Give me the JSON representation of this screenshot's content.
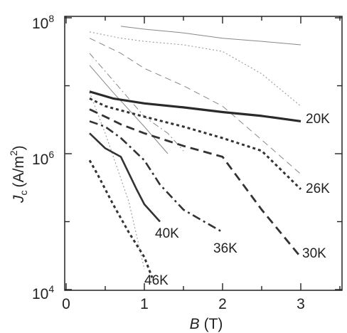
{
  "chart_data": {
    "type": "line",
    "xlabel": "B (T)",
    "xlabel_parts": [
      "B",
      "(T)"
    ],
    "ylabel_parts": [
      "J",
      "c",
      "(A/m",
      "2",
      ")"
    ],
    "xlim": [
      0,
      3.5
    ],
    "ylim": [
      10000,
      100000000
    ],
    "yscale": "log",
    "grid": false,
    "x_ticks": [
      0,
      1,
      2,
      3
    ],
    "x_tick_labels": [
      "0",
      "1",
      "2",
      "3"
    ],
    "y_ticks": [
      10000,
      1000000,
      100000000
    ],
    "y_tick_labels": [
      {
        "base": "10",
        "exp": "4"
      },
      {
        "base": "10",
        "exp": "6"
      },
      {
        "base": "10",
        "exp": "8"
      }
    ],
    "series": [
      {
        "name": "20K",
        "style": "thick-solid",
        "x": [
          0.3,
          0.6,
          1.0,
          1.5,
          2.0,
          2.5,
          3.0
        ],
        "y": [
          8200000,
          6500000,
          5500000,
          4800000,
          4100000,
          3600000,
          3000000
        ]
      },
      {
        "name": "26K",
        "style": "dotted",
        "x": [
          0.3,
          0.5,
          1.0,
          1.5,
          2.0,
          2.5,
          3.0
        ],
        "y": [
          6500000,
          5000000,
          3500000,
          2500000,
          1700000,
          1100000,
          300000
        ]
      },
      {
        "name": "30K",
        "style": "dashed",
        "x": [
          0.3,
          0.5,
          0.7,
          1.0,
          1.5,
          2.0,
          2.5,
          3.0
        ],
        "y": [
          4500000,
          3500000,
          2700000,
          2000000,
          1300000,
          900000,
          150000,
          30000
        ]
      },
      {
        "name": "36K",
        "style": "dash-dot",
        "x": [
          0.3,
          0.5,
          0.7,
          1.0,
          1.2,
          1.5,
          2.0
        ],
        "y": [
          3000000,
          2500000,
          1700000,
          800000,
          350000,
          150000,
          70000
        ]
      },
      {
        "name": "40K",
        "style": "solid",
        "x": [
          0.3,
          0.5,
          0.7,
          0.9,
          1.0,
          1.2
        ],
        "y": [
          2000000,
          1200000,
          900000,
          300000,
          180000,
          100000
        ]
      },
      {
        "name": "46K",
        "style": "dotted",
        "x": [
          0.3,
          0.4,
          0.6,
          0.8,
          1.0,
          1.1
        ],
        "y": [
          800000,
          500000,
          180000,
          70000,
          30000,
          15000
        ]
      }
    ],
    "background_curves": [
      {
        "style": "thin-solid",
        "x": [
          0.7,
          1.0,
          1.5,
          2.0,
          2.5,
          3.0
        ],
        "y": [
          75000000,
          68000000,
          60000000,
          50000000,
          45000000,
          40000000
        ]
      },
      {
        "style": "thin-dotted",
        "x": [
          0.3,
          0.7,
          1.0,
          1.5,
          2.0,
          2.5,
          3.0
        ],
        "y": [
          62000000,
          50000000,
          45000000,
          40000000,
          32000000,
          15000000,
          5000000
        ]
      },
      {
        "style": "thin-dashed",
        "x": [
          0.3,
          0.7,
          1.0,
          1.5,
          2.0,
          2.5,
          3.0
        ],
        "y": [
          50000000,
          30000000,
          18000000,
          10000000,
          5000000,
          1600000,
          500000
        ]
      },
      {
        "style": "thin-dash-dot",
        "x": [
          0.3,
          0.6,
          1.0,
          1.3,
          1.5
        ],
        "y": [
          30000000,
          12000000,
          3500000,
          2000000,
          1100000
        ]
      },
      {
        "style": "thin-solid",
        "x": [
          0.3,
          0.6,
          1.0,
          1.3
        ],
        "y": [
          20000000,
          8000000,
          2500000,
          1000000
        ]
      },
      {
        "style": "thin-dotted",
        "x": [
          0.3,
          0.5,
          0.8,
          1.0
        ],
        "y": [
          8000000,
          2000000,
          200000,
          20000
        ]
      }
    ]
  }
}
